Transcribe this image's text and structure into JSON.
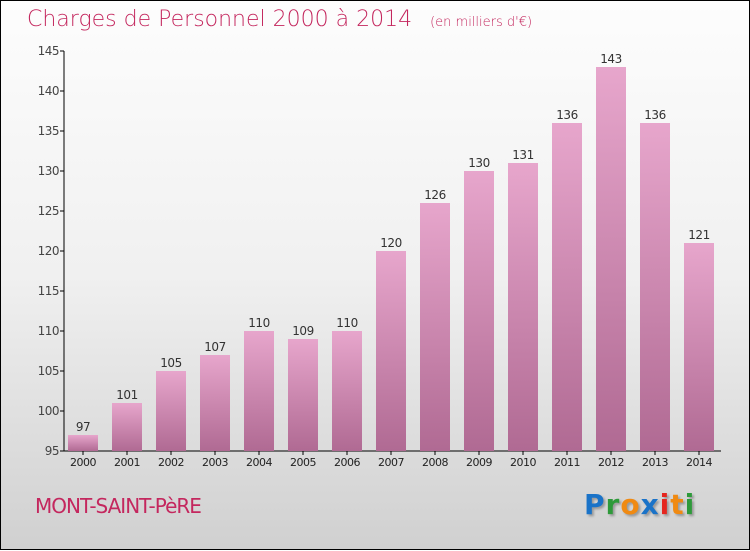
{
  "chart_data": {
    "type": "bar",
    "title": "Charges de Personnel 2000 à 2014",
    "subtitle": "(en milliers d'€)",
    "categories": [
      "2000",
      "2001",
      "2002",
      "2003",
      "2004",
      "2005",
      "2006",
      "2007",
      "2008",
      "2009",
      "2010",
      "2011",
      "2012",
      "2013",
      "2014"
    ],
    "values": [
      97,
      101,
      105,
      107,
      110,
      109,
      110,
      120,
      126,
      130,
      131,
      136,
      143,
      136,
      121
    ],
    "yticks": [
      95,
      100,
      105,
      110,
      115,
      120,
      125,
      130,
      135,
      140,
      145
    ],
    "ylim": [
      95,
      145
    ],
    "xlabel": "",
    "ylabel": "",
    "grid": false,
    "bar_color": "#cc6e9e"
  },
  "location": "MONT-SAINT-PèRE",
  "logo": {
    "text": "Proxiti",
    "letters": [
      {
        "c": "P",
        "color": "#1a73c8"
      },
      {
        "c": "r",
        "color": "#2e9a3a"
      },
      {
        "c": "o",
        "color": "#f08a12"
      },
      {
        "c": "x",
        "color": "#1a73c8"
      },
      {
        "c": "i",
        "color": "#e5261f"
      },
      {
        "c": "t",
        "color": "#f08a12"
      },
      {
        "c": "i",
        "color": "#2e9a3a"
      }
    ]
  }
}
